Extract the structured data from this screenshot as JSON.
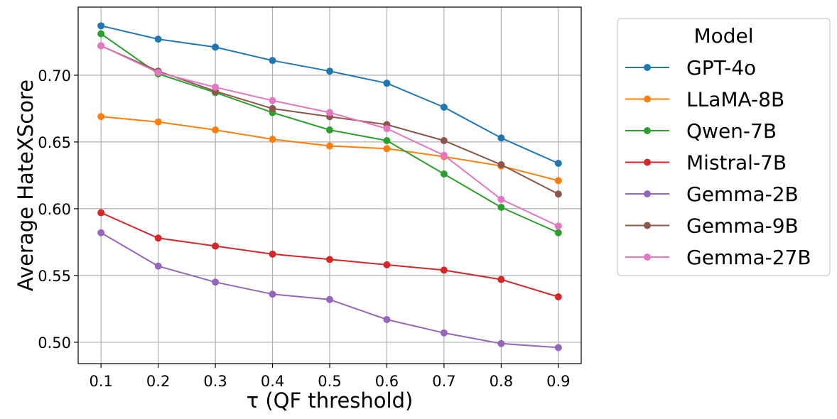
{
  "chart_data": {
    "type": "line",
    "title": "",
    "xlabel": "τ (QF threshold)",
    "ylabel": "Average HateXScore",
    "x": [
      0.1,
      0.2,
      0.3,
      0.4,
      0.5,
      0.6,
      0.7,
      0.8,
      0.9
    ],
    "x_tick_labels": [
      "0.1",
      "0.2",
      "0.3",
      "0.4",
      "0.5",
      "0.6",
      "0.7",
      "0.8",
      "0.9"
    ],
    "y_ticks": [
      0.5,
      0.55,
      0.6,
      0.65,
      0.7
    ],
    "y_tick_labels": [
      "0.50",
      "0.55",
      "0.60",
      "0.65",
      "0.70"
    ],
    "xlim": [
      0.06,
      0.94
    ],
    "ylim": [
      0.484,
      0.751
    ],
    "grid": true,
    "legend": {
      "title": "Model",
      "placement": "outside-right"
    },
    "series": [
      {
        "name": "GPT-4o",
        "color": "#1f77b4",
        "values": [
          0.737,
          0.727,
          0.721,
          0.711,
          0.703,
          0.694,
          0.676,
          0.653,
          0.634
        ]
      },
      {
        "name": "LLaMA-8B",
        "color": "#ff7f0e",
        "values": [
          0.669,
          0.665,
          0.659,
          0.652,
          0.647,
          0.645,
          0.639,
          0.632,
          0.621
        ]
      },
      {
        "name": "Qwen-7B",
        "color": "#2ca02c",
        "values": [
          0.731,
          0.701,
          0.687,
          0.672,
          0.659,
          0.651,
          0.626,
          0.601,
          0.582
        ]
      },
      {
        "name": "Mistral-7B",
        "color": "#d62728",
        "values": [
          0.597,
          0.578,
          0.572,
          0.566,
          0.562,
          0.558,
          0.554,
          0.547,
          0.534
        ]
      },
      {
        "name": "Gemma-2B",
        "color": "#9467bd",
        "values": [
          0.582,
          0.557,
          0.545,
          0.536,
          0.532,
          0.517,
          0.507,
          0.499,
          0.496
        ]
      },
      {
        "name": "Gemma-9B",
        "color": "#8c564b",
        "values": [
          0.722,
          0.703,
          0.688,
          0.675,
          0.669,
          0.663,
          0.651,
          0.633,
          0.611
        ]
      },
      {
        "name": "Gemma-27B",
        "color": "#e377c2",
        "values": [
          0.722,
          0.702,
          0.691,
          0.681,
          0.672,
          0.66,
          0.64,
          0.607,
          0.587
        ]
      }
    ]
  }
}
